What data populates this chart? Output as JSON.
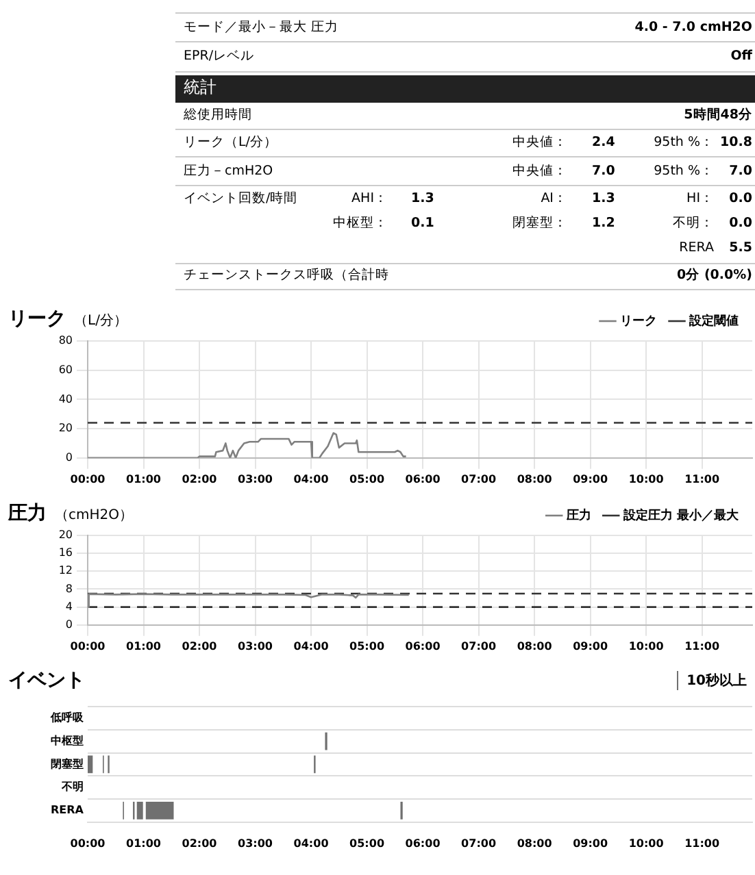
{
  "chart_data": [
    {
      "type": "other",
      "annotations": [
        "モード／最小－最大 圧力",
        "4.0 - 7.0 cmH2O",
        "EPR/レベル",
        "Off",
        "統計",
        "総使用時間",
        "5時間48分",
        "リーク（L/分）",
        "中央値：",
        "2.4",
        "95th %：",
        "10.8",
        "圧力－cmH2O",
        "中央値：",
        "7.0",
        "95th %：",
        "7.0",
        "イベント回数/時間",
        "AHI：",
        "1.3",
        "AI：",
        "1.3",
        "HI：",
        "0.0",
        "中枢型：",
        "0.1",
        "閉塞型：",
        "1.2",
        "不明：",
        "0.0",
        "RERA",
        "5.5",
        "チェーンストークス呼吸（合計時",
        "0分 (0.0%)"
      ]
    },
    {
      "type": "line",
      "title": "リーク",
      "ylabel": "（L/分）",
      "xlim": [
        0,
        11.9
      ],
      "xticks": [
        {
          "value": 0,
          "label": "00:00"
        },
        {
          "value": 1,
          "label": "01:00"
        },
        {
          "value": 2,
          "label": "02:00"
        },
        {
          "value": 3,
          "label": "03:00"
        },
        {
          "value": 4,
          "label": "04:00"
        },
        {
          "value": 5,
          "label": "05:00"
        },
        {
          "value": 6,
          "label": "06:00"
        },
        {
          "value": 7,
          "label": "07:00"
        },
        {
          "value": 8,
          "label": "08:00"
        },
        {
          "value": 9,
          "label": "09:00"
        },
        {
          "value": 10,
          "label": "10:00"
        },
        {
          "value": 11,
          "label": "11:00"
        }
      ],
      "ylim": [
        0,
        80
      ],
      "yticks": [
        0,
        20,
        40,
        60,
        80
      ],
      "grid": true,
      "legend": "top right",
      "marker": "none",
      "series": [
        {
          "name": "リーク",
          "color": "#808080",
          "x": [
            0,
            1.97,
            2.0,
            2.28,
            2.3,
            2.42,
            2.47,
            2.5,
            2.55,
            2.6,
            2.65,
            2.7,
            2.8,
            2.9,
            3.05,
            3.1,
            3.6,
            3.65,
            3.7,
            4.0,
            4.02,
            4.15,
            4.2,
            4.3,
            4.4,
            4.45,
            4.5,
            4.6,
            4.8,
            4.82,
            4.85,
            5.5,
            5.55,
            5.6,
            5.65,
            5.7
          ],
          "values": [
            0,
            0,
            1,
            1,
            4,
            5,
            10,
            5,
            0,
            5,
            0,
            5,
            10,
            11,
            11,
            13,
            13,
            9,
            11,
            11,
            0,
            0,
            3,
            8,
            17,
            16,
            7,
            10,
            10,
            12,
            4,
            4,
            5,
            4,
            1,
            1
          ]
        }
      ],
      "ref_lines": [
        {
          "axis": "y",
          "value": 24,
          "label": "設定閾値",
          "color": "#333333",
          "line_style": "dashed"
        }
      ]
    },
    {
      "type": "line",
      "title": "圧力",
      "ylabel": "（cmH2O）",
      "xlim": [
        0,
        11.9
      ],
      "xticks": [
        {
          "value": 0,
          "label": "00:00"
        },
        {
          "value": 1,
          "label": "01:00"
        },
        {
          "value": 2,
          "label": "02:00"
        },
        {
          "value": 3,
          "label": "03:00"
        },
        {
          "value": 4,
          "label": "04:00"
        },
        {
          "value": 5,
          "label": "05:00"
        },
        {
          "value": 6,
          "label": "06:00"
        },
        {
          "value": 7,
          "label": "07:00"
        },
        {
          "value": 8,
          "label": "08:00"
        },
        {
          "value": 9,
          "label": "09:00"
        },
        {
          "value": 10,
          "label": "10:00"
        },
        {
          "value": 11,
          "label": "11:00"
        }
      ],
      "ylim": [
        0,
        20
      ],
      "yticks": [
        0,
        4,
        8,
        12,
        16,
        20
      ],
      "grid": true,
      "legend": "top right",
      "marker": "none",
      "series": [
        {
          "name": "圧力",
          "color": "#808080",
          "x": [
            0,
            0.02,
            0.5,
            1,
            1.5,
            2,
            2.5,
            3,
            3.5,
            3.9,
            4.0,
            4.1,
            4.2,
            4.5,
            4.75,
            4.8,
            4.85,
            5.2,
            5.75
          ],
          "values": [
            4,
            6.9,
            6.8,
            6.9,
            6.8,
            6.8,
            6.8,
            6.8,
            6.8,
            6.7,
            6.2,
            6.5,
            6.8,
            6.8,
            6.6,
            6.1,
            6.8,
            6.8,
            6.7
          ]
        }
      ],
      "ref_lines": [
        {
          "axis": "y",
          "value": 7,
          "label": "設定圧力 最小／最大",
          "color": "#333333",
          "line_style": "dashed"
        },
        {
          "axis": "y",
          "value": 4,
          "color": "#333333",
          "line_style": "dashed"
        }
      ]
    },
    {
      "type": "bar",
      "orientation": "horizontal",
      "title": "イベント",
      "legend_title": "10秒以上",
      "categories": [
        "低呼吸",
        "中枢型",
        "閉塞型",
        "不明",
        "RERA"
      ],
      "xlim": [
        0,
        11.9
      ],
      "xticks": [
        {
          "value": 0,
          "label": "00:00"
        },
        {
          "value": 1,
          "label": "01:00"
        },
        {
          "value": 2,
          "label": "02:00"
        },
        {
          "value": 3,
          "label": "03:00"
        },
        {
          "value": 4,
          "label": "04:00"
        },
        {
          "value": 5,
          "label": "05:00"
        },
        {
          "value": 6,
          "label": "06:00"
        },
        {
          "value": 7,
          "label": "07:00"
        },
        {
          "value": 8,
          "label": "08:00"
        },
        {
          "value": 9,
          "label": "09:00"
        },
        {
          "value": 10,
          "label": "10:00"
        },
        {
          "value": 11,
          "label": "11:00"
        }
      ],
      "grid": "y",
      "series": [
        {
          "color": "#707070",
          "base": [
            null,
            4.25,
            null,
            null,
            null
          ],
          "values": [
            null,
            0.04,
            null,
            null,
            null
          ]
        },
        {
          "color": "#707070",
          "base": [
            null,
            null,
            0,
            null,
            null
          ],
          "values": [
            null,
            null,
            0.09,
            null,
            null
          ]
        },
        {
          "color": "#707070",
          "base": [
            null,
            null,
            0.27,
            null,
            null
          ],
          "values": [
            null,
            null,
            0.02,
            null,
            null
          ]
        },
        {
          "color": "#707070",
          "base": [
            null,
            null,
            0.36,
            null,
            null
          ],
          "values": [
            null,
            null,
            0.03,
            null,
            null
          ]
        },
        {
          "color": "#707070",
          "base": [
            null,
            null,
            4.05,
            null,
            null
          ],
          "values": [
            null,
            null,
            0.03,
            null,
            null
          ]
        },
        {
          "color": "#707070",
          "base": [
            null,
            null,
            null,
            null,
            0.63
          ],
          "values": [
            null,
            null,
            null,
            null,
            0.02
          ]
        },
        {
          "color": "#707070",
          "base": [
            null,
            null,
            null,
            null,
            0.81
          ],
          "values": [
            null,
            null,
            null,
            null,
            0.03
          ]
        },
        {
          "color": "#707070",
          "base": [
            null,
            null,
            null,
            null,
            0.88
          ],
          "values": [
            null,
            null,
            null,
            null,
            0.11
          ]
        },
        {
          "color": "#707070",
          "base": [
            null,
            null,
            null,
            null,
            1.04
          ],
          "values": [
            null,
            null,
            null,
            null,
            0.5
          ]
        },
        {
          "color": "#707070",
          "base": [
            null,
            null,
            null,
            null,
            5.6
          ],
          "values": [
            null,
            null,
            null,
            null,
            0.04
          ]
        }
      ]
    }
  ]
}
